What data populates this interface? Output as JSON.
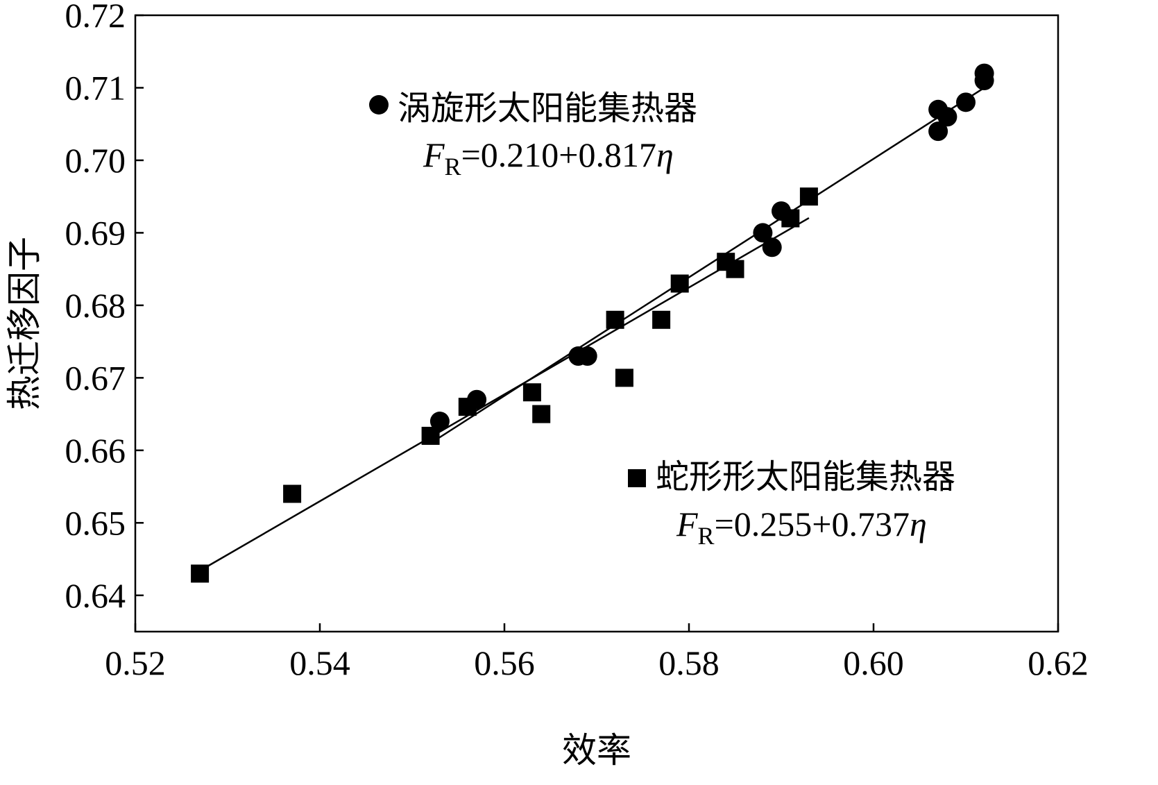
{
  "chart_data": {
    "type": "scatter",
    "xlabel": "效率",
    "ylabel": "热迁移因子",
    "xlim": [
      0.52,
      0.62
    ],
    "ylim": [
      0.635,
      0.72
    ],
    "xticks": [
      0.52,
      0.54,
      0.56,
      0.58,
      0.6,
      0.62
    ],
    "xtick_labels": [
      "0.52",
      "0.54",
      "0.56",
      "0.58",
      "0.60",
      "0.62"
    ],
    "yticks": [
      0.64,
      0.65,
      0.66,
      0.67,
      0.68,
      0.69,
      0.7,
      0.71,
      0.72
    ],
    "ytick_labels": [
      "0.64",
      "0.65",
      "0.66",
      "0.67",
      "0.68",
      "0.69",
      "0.70",
      "0.71",
      "0.72"
    ],
    "grid": false,
    "series": [
      {
        "name": "涡旋形太阳能集热器",
        "marker": "circle",
        "color": "#000000",
        "equation": {
          "lhs": "F",
          "sub": "R",
          "rhs": "=0.210+0.817",
          "var": "η"
        },
        "fit": {
          "intercept": 0.21,
          "slope": 0.817,
          "x_range": [
            0.552,
            0.612
          ]
        },
        "points": [
          [
            0.553,
            0.664
          ],
          [
            0.557,
            0.667
          ],
          [
            0.568,
            0.673
          ],
          [
            0.569,
            0.673
          ],
          [
            0.588,
            0.69
          ],
          [
            0.589,
            0.688
          ],
          [
            0.59,
            0.693
          ],
          [
            0.607,
            0.707
          ],
          [
            0.607,
            0.704
          ],
          [
            0.608,
            0.706
          ],
          [
            0.61,
            0.708
          ],
          [
            0.612,
            0.711
          ],
          [
            0.612,
            0.712
          ]
        ]
      },
      {
        "name": "蛇形形太阳能集热器",
        "marker": "square",
        "color": "#000000",
        "equation": {
          "lhs": "F",
          "sub": "R",
          "rhs": "=0.255+0.737",
          "var": "η"
        },
        "fit": {
          "intercept": 0.255,
          "slope": 0.737,
          "x_range": [
            0.527,
            0.593
          ]
        },
        "points": [
          [
            0.527,
            0.643
          ],
          [
            0.537,
            0.654
          ],
          [
            0.552,
            0.662
          ],
          [
            0.556,
            0.666
          ],
          [
            0.563,
            0.668
          ],
          [
            0.564,
            0.665
          ],
          [
            0.572,
            0.678
          ],
          [
            0.573,
            0.67
          ],
          [
            0.577,
            0.678
          ],
          [
            0.579,
            0.683
          ],
          [
            0.584,
            0.686
          ],
          [
            0.585,
            0.685
          ],
          [
            0.591,
            0.692
          ],
          [
            0.593,
            0.695
          ]
        ]
      }
    ]
  }
}
